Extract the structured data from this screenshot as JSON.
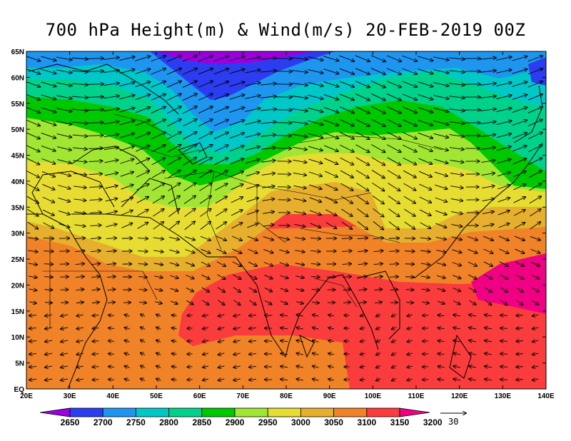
{
  "title": "700 hPa Height(m) & Wind(m/s) 20-FEB-2019 00Z",
  "map": {
    "lon_range": [
      20,
      140
    ],
    "lat_range": [
      0,
      65
    ],
    "lat_ticks": [
      "EQ",
      "5N",
      "10N",
      "15N",
      "20N",
      "25N",
      "30N",
      "35N",
      "40N",
      "45N",
      "50N",
      "55N",
      "60N",
      "65N"
    ],
    "lon_ticks": [
      "20E",
      "30E",
      "40E",
      "50E",
      "60E",
      "70E",
      "80E",
      "90E",
      "100E",
      "110E",
      "120E",
      "130E",
      "140E"
    ]
  },
  "colorbar": {
    "levels": [
      "2650",
      "2700",
      "2750",
      "2800",
      "2850",
      "2900",
      "2950",
      "3000",
      "3050",
      "3100",
      "3150",
      "3200"
    ],
    "colors": [
      "#9a00e0",
      "#2c3cf0",
      "#1e96f0",
      "#00c8c8",
      "#00d28c",
      "#00c800",
      "#a0e632",
      "#e6dc32",
      "#e6af2d",
      "#f08228",
      "#fa3c3c",
      "#f00082"
    ]
  },
  "wind_reference": {
    "value": "30"
  }
}
